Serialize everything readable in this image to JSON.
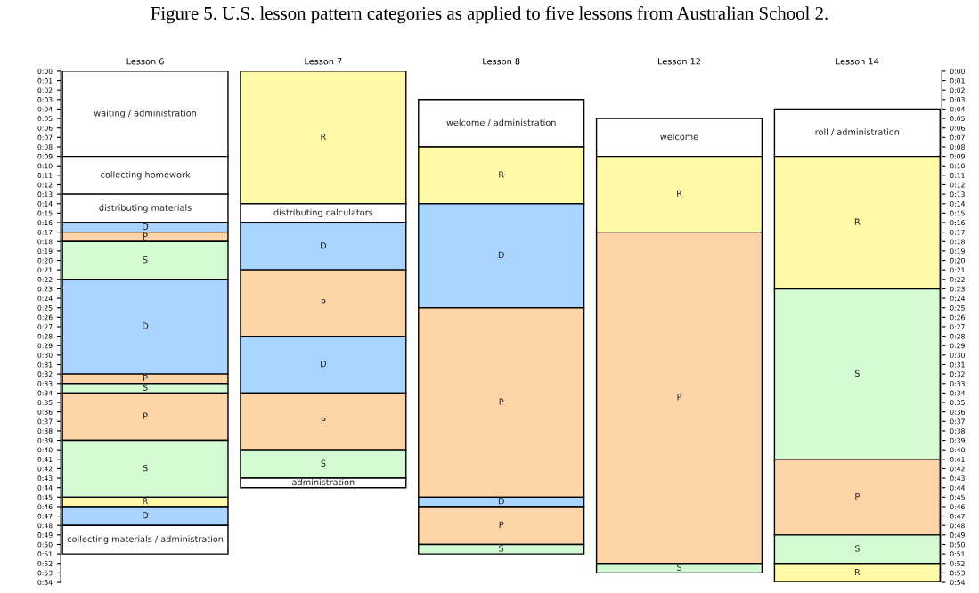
{
  "chart_data": {
    "type": "bar",
    "title": "Figure 5. U.S. lesson pattern categories as applied to five lessons from Australian School 2.",
    "categories": [
      "Lesson 6",
      "Lesson 7",
      "Lesson 8",
      "Lesson 12",
      "Lesson 14"
    ],
    "ylim": [
      54,
      0
    ],
    "yticks": [
      {
        "value": 0,
        "label": "0:00"
      },
      {
        "value": 1,
        "label": "0:01"
      },
      {
        "value": 2,
        "label": "0:02"
      },
      {
        "value": 3,
        "label": "0:03"
      },
      {
        "value": 4,
        "label": "0:04"
      },
      {
        "value": 5,
        "label": "0:05"
      },
      {
        "value": 6,
        "label": "0:06"
      },
      {
        "value": 7,
        "label": "0:07"
      },
      {
        "value": 8,
        "label": "0:08"
      },
      {
        "value": 9,
        "label": "0:09"
      },
      {
        "value": 10,
        "label": "0:10"
      },
      {
        "value": 11,
        "label": "0:11"
      },
      {
        "value": 12,
        "label": "0:12"
      },
      {
        "value": 13,
        "label": "0:13"
      },
      {
        "value": 14,
        "label": "0:14"
      },
      {
        "value": 15,
        "label": "0:15"
      },
      {
        "value": 16,
        "label": "0:16"
      },
      {
        "value": 17,
        "label": "0:17"
      },
      {
        "value": 18,
        "label": "0:18"
      },
      {
        "value": 19,
        "label": "0:19"
      },
      {
        "value": 20,
        "label": "0:20"
      },
      {
        "value": 21,
        "label": "0:21"
      },
      {
        "value": 22,
        "label": "0:22"
      },
      {
        "value": 23,
        "label": "0:23"
      },
      {
        "value": 24,
        "label": "0:24"
      },
      {
        "value": 25,
        "label": "0:25"
      },
      {
        "value": 26,
        "label": "0:26"
      },
      {
        "value": 27,
        "label": "0:27"
      },
      {
        "value": 28,
        "label": "0:28"
      },
      {
        "value": 29,
        "label": "0:29"
      },
      {
        "value": 30,
        "label": "0:30"
      },
      {
        "value": 31,
        "label": "0:31"
      },
      {
        "value": 32,
        "label": "0:32"
      },
      {
        "value": 33,
        "label": "0:33"
      },
      {
        "value": 34,
        "label": "0:34"
      },
      {
        "value": 35,
        "label": "0:35"
      },
      {
        "value": 36,
        "label": "0:36"
      },
      {
        "value": 37,
        "label": "0:37"
      },
      {
        "value": 38,
        "label": "0:38"
      },
      {
        "value": 39,
        "label": "0:39"
      },
      {
        "value": 40,
        "label": "0:40"
      },
      {
        "value": 41,
        "label": "0:41"
      },
      {
        "value": 42,
        "label": "0:42"
      },
      {
        "value": 43,
        "label": "0:43"
      },
      {
        "value": 44,
        "label": "0:44"
      },
      {
        "value": 45,
        "label": "0:45"
      },
      {
        "value": 46,
        "label": "0:46"
      },
      {
        "value": 47,
        "label": "0:47"
      },
      {
        "value": 48,
        "label": "0:48"
      },
      {
        "value": 49,
        "label": "0:49"
      },
      {
        "value": 50,
        "label": "0:50"
      },
      {
        "value": 51,
        "label": "0:51"
      },
      {
        "value": 52,
        "label": "0:52"
      },
      {
        "value": 53,
        "label": "0:53"
      },
      {
        "value": 54,
        "label": "0:54"
      }
    ],
    "y2lim": [
      54,
      0
    ],
    "y2ticks": [
      {
        "value": 0,
        "label": "0:00"
      },
      {
        "value": 1,
        "label": "0:01"
      },
      {
        "value": 2,
        "label": "0:02"
      },
      {
        "value": 3,
        "label": "0:03"
      },
      {
        "value": 4,
        "label": "0:04"
      },
      {
        "value": 5,
        "label": "0:05"
      },
      {
        "value": 6,
        "label": "0:06"
      },
      {
        "value": 7,
        "label": "0:07"
      },
      {
        "value": 8,
        "label": "0:08"
      },
      {
        "value": 9,
        "label": "0:09"
      },
      {
        "value": 10,
        "label": "0:10"
      },
      {
        "value": 11,
        "label": "0:11"
      },
      {
        "value": 12,
        "label": "0:12"
      },
      {
        "value": 13,
        "label": "0:13"
      },
      {
        "value": 14,
        "label": "0:14"
      },
      {
        "value": 15,
        "label": "0:15"
      },
      {
        "value": 16,
        "label": "0:16"
      },
      {
        "value": 17,
        "label": "0:17"
      },
      {
        "value": 18,
        "label": "0:18"
      },
      {
        "value": 19,
        "label": "0:19"
      },
      {
        "value": 20,
        "label": "0:20"
      },
      {
        "value": 21,
        "label": "0:21"
      },
      {
        "value": 22,
        "label": "0:22"
      },
      {
        "value": 23,
        "label": "0:23"
      },
      {
        "value": 24,
        "label": "0:24"
      },
      {
        "value": 25,
        "label": "0:25"
      },
      {
        "value": 26,
        "label": "0:26"
      },
      {
        "value": 27,
        "label": "0:27"
      },
      {
        "value": 28,
        "label": "0:28"
      },
      {
        "value": 29,
        "label": "0:29"
      },
      {
        "value": 30,
        "label": "0:30"
      },
      {
        "value": 31,
        "label": "0:31"
      },
      {
        "value": 32,
        "label": "0:32"
      },
      {
        "value": 33,
        "label": "0:33"
      },
      {
        "value": 34,
        "label": "0:34"
      },
      {
        "value": 35,
        "label": "0:35"
      },
      {
        "value": 36,
        "label": "0:36"
      },
      {
        "value": 37,
        "label": "0:37"
      },
      {
        "value": 38,
        "label": "0:38"
      },
      {
        "value": 39,
        "label": "0:39"
      },
      {
        "value": 40,
        "label": "0:40"
      },
      {
        "value": 41,
        "label": "0:41"
      },
      {
        "value": 42,
        "label": "0:42"
      },
      {
        "value": 43,
        "label": "0:43"
      },
      {
        "value": 44,
        "label": "0:44"
      },
      {
        "value": 45,
        "label": "0:45"
      },
      {
        "value": 46,
        "label": "0:46"
      },
      {
        "value": 47,
        "label": "0:47"
      },
      {
        "value": 48,
        "label": "0:48"
      },
      {
        "value": 49,
        "label": "0:49"
      },
      {
        "value": 50,
        "label": "0:50"
      },
      {
        "value": 51,
        "label": "0:51"
      },
      {
        "value": 52,
        "label": "0:52"
      },
      {
        "value": 53,
        "label": "0:53"
      },
      {
        "value": 54,
        "label": "0:54"
      }
    ],
    "series": [
      {
        "base": [
          0,
          0,
          3,
          5,
          4
        ],
        "values": [
          9,
          14,
          5,
          4,
          5
        ],
        "colors": [
          "#ffffff",
          "#fffaa8",
          "#ffffff",
          "#ffffff",
          "#ffffff"
        ],
        "value_labels": [
          "waiting / administration",
          "R",
          "welcome / administration",
          "welcome",
          "roll / administration"
        ]
      },
      {
        "base": [
          9,
          14,
          8,
          9,
          9
        ],
        "values": [
          4,
          2,
          6,
          8,
          14
        ],
        "colors": [
          "#ffffff",
          "#ffffff",
          "#fffaa8",
          "#fffaa8",
          "#fffaa8"
        ],
        "value_labels": [
          "collecting homework",
          "distributing calculators",
          "R",
          "R",
          "R"
        ]
      },
      {
        "base": [
          13,
          16,
          14,
          17,
          23
        ],
        "values": [
          3,
          5,
          11,
          35,
          18
        ],
        "colors": [
          "#ffffff",
          "#a8d4ff",
          "#a8d4ff",
          "#fdd4a8",
          "#d4fad4"
        ],
        "value_labels": [
          "distributing materials",
          "D",
          "D",
          "P",
          "S"
        ]
      },
      {
        "base": [
          16,
          21,
          25,
          52,
          41
        ],
        "values": [
          1,
          7,
          20,
          1,
          8
        ],
        "colors": [
          "#a8d4ff",
          "#fdd4a8",
          "#fdd4a8",
          "#d4fad4",
          "#fdd4a8"
        ],
        "value_labels": [
          "D",
          "P",
          "P",
          "S",
          "P"
        ]
      },
      {
        "base": [
          17,
          28,
          45,
          null,
          49
        ],
        "values": [
          1,
          6,
          1,
          null,
          3
        ],
        "colors": [
          "#fdd4a8",
          "#a8d4ff",
          "#a8d4ff",
          null,
          "#d4fad4"
        ],
        "value_labels": [
          "P",
          "D",
          "D",
          null,
          "S"
        ]
      },
      {
        "base": [
          18,
          34,
          46,
          null,
          52
        ],
        "values": [
          4,
          6,
          4,
          null,
          2
        ],
        "colors": [
          "#d4fad4",
          "#fdd4a8",
          "#fdd4a8",
          null,
          "#fffaa8"
        ],
        "value_labels": [
          "S",
          "P",
          "P",
          null,
          "R"
        ]
      },
      {
        "base": [
          22,
          40,
          50,
          null,
          null
        ],
        "values": [
          10,
          3,
          1,
          null,
          null
        ],
        "colors": [
          "#a8d4ff",
          "#d4fad4",
          "#d4fad4",
          null,
          null
        ],
        "value_labels": [
          "D",
          "S",
          "S",
          null,
          null
        ]
      },
      {
        "base": [
          32,
          43,
          null,
          null,
          null
        ],
        "values": [
          1,
          1,
          null,
          null,
          null
        ],
        "colors": [
          "#fdd4a8",
          "#ffffff",
          null,
          null,
          null
        ],
        "value_labels": [
          "P",
          "administration",
          null,
          null,
          null
        ]
      },
      {
        "base": [
          33,
          null,
          null,
          null,
          null
        ],
        "values": [
          1,
          null,
          null,
          null,
          null
        ],
        "colors": [
          "#d4fad4",
          null,
          null,
          null,
          null
        ],
        "value_labels": [
          "S",
          null,
          null,
          null,
          null
        ]
      },
      {
        "base": [
          34,
          null,
          null,
          null,
          null
        ],
        "values": [
          5,
          null,
          null,
          null,
          null
        ],
        "colors": [
          "#fdd4a8",
          null,
          null,
          null,
          null
        ],
        "value_labels": [
          "P",
          null,
          null,
          null,
          null
        ]
      },
      {
        "base": [
          39,
          null,
          null,
          null,
          null
        ],
        "values": [
          6,
          null,
          null,
          null,
          null
        ],
        "colors": [
          "#d4fad4",
          null,
          null,
          null,
          null
        ],
        "value_labels": [
          "S",
          null,
          null,
          null,
          null
        ]
      },
      {
        "base": [
          45,
          null,
          null,
          null,
          null
        ],
        "values": [
          1,
          null,
          null,
          null,
          null
        ],
        "colors": [
          "#fffaa8",
          null,
          null,
          null,
          null
        ],
        "value_labels": [
          "R",
          null,
          null,
          null,
          null
        ]
      },
      {
        "base": [
          46,
          null,
          null,
          null,
          null
        ],
        "values": [
          2,
          null,
          null,
          null,
          null
        ],
        "colors": [
          "#a8d4ff",
          null,
          null,
          null,
          null
        ],
        "value_labels": [
          "D",
          null,
          null,
          null,
          null
        ]
      },
      {
        "base": [
          48,
          null,
          null,
          null,
          null
        ],
        "values": [
          3,
          null,
          null,
          null,
          null
        ],
        "colors": [
          "#ffffff",
          null,
          null,
          null,
          null
        ],
        "value_labels": [
          "collecting materials / administration",
          null,
          null,
          null,
          null
        ]
      }
    ],
    "grid": false
  }
}
